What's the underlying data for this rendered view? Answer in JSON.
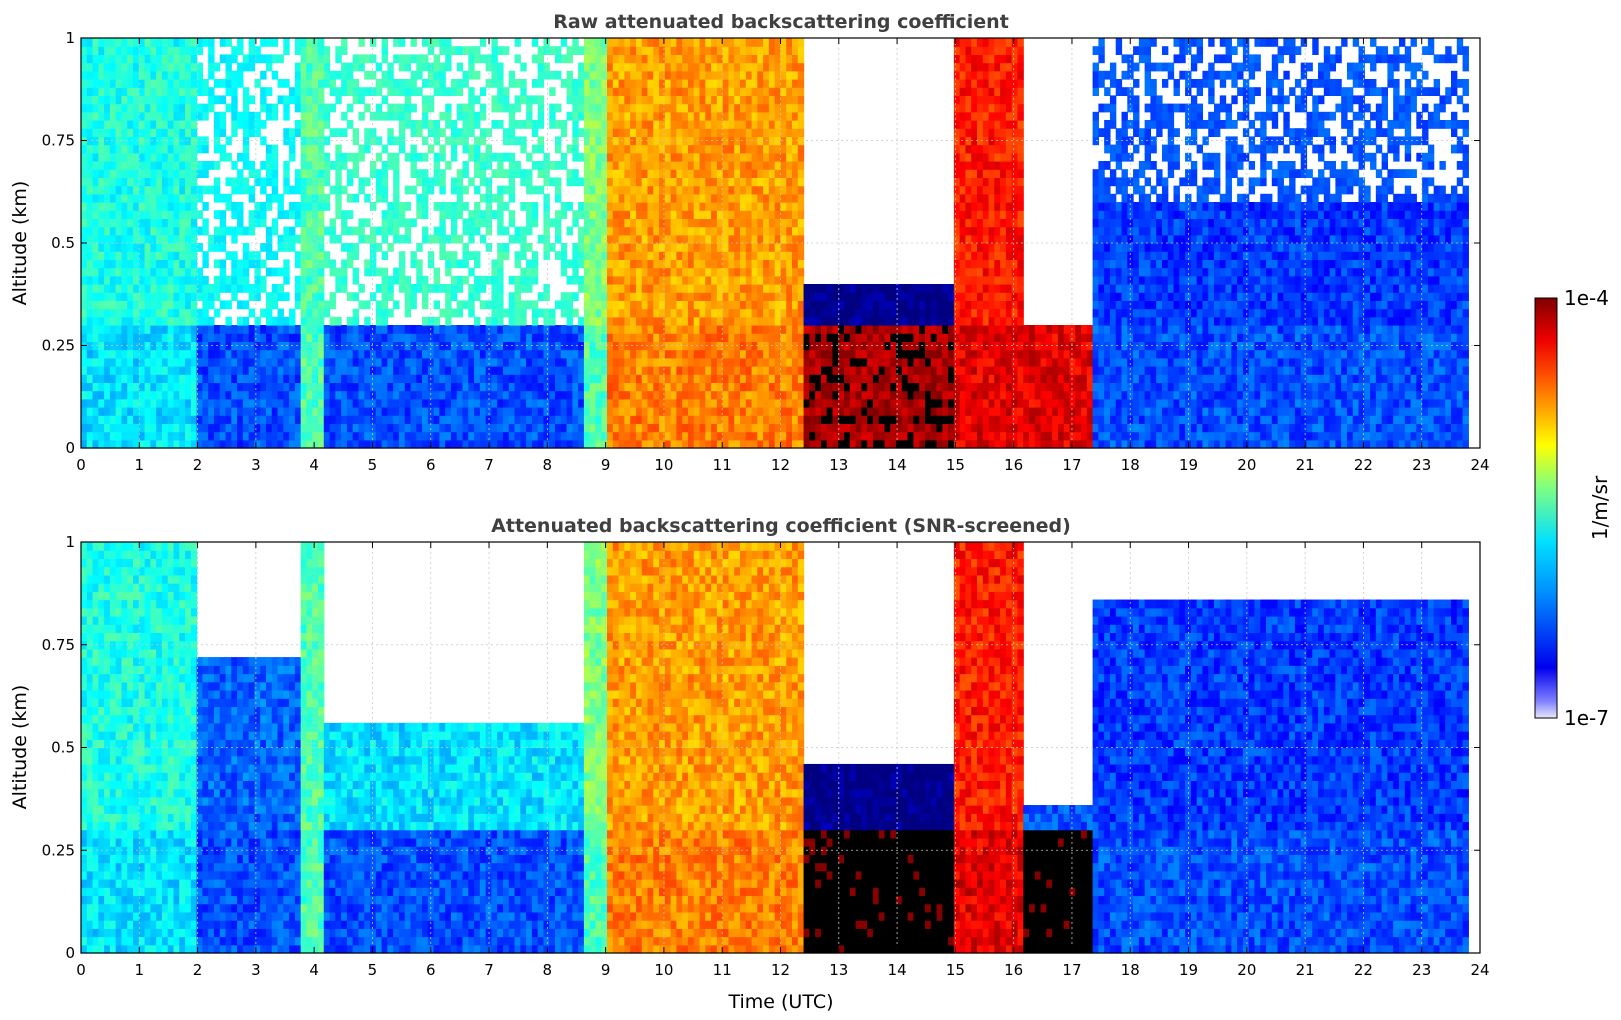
{
  "chart_data": [
    {
      "type": "heatmap",
      "title": "Raw attenuated backscattering coefficient",
      "xlabel": "",
      "ylabel": "Altitude (km)",
      "xlim": [
        0,
        24
      ],
      "ylim": [
        0,
        1
      ],
      "xticks": [
        "0",
        "1",
        "2",
        "3",
        "4",
        "5",
        "6",
        "7",
        "8",
        "9",
        "10",
        "11",
        "12",
        "13",
        "14",
        "15",
        "16",
        "17",
        "18",
        "19",
        "20",
        "21",
        "22",
        "23",
        "24"
      ],
      "yticks": [
        "0",
        "0.25",
        "0.5",
        "0.75",
        "1"
      ],
      "grid": true,
      "data_extent_hours": [
        0,
        23.8
      ],
      "segments": [
        {
          "t": [
            0,
            2
          ],
          "low_level": 0.35,
          "aloft_level": 0.4,
          "top": 1.0,
          "noisy_above": null
        },
        {
          "t": [
            2,
            3.8
          ],
          "low_level": 0.2,
          "aloft_level": 0.35,
          "top": 1.0,
          "noisy_above": 0.3
        },
        {
          "t": [
            3.8,
            4.2
          ],
          "low_level": 0.45,
          "aloft_level": 0.45,
          "top": 1.0,
          "noisy_above": null
        },
        {
          "t": [
            4.2,
            8.6
          ],
          "low_level": 0.2,
          "aloft_level": 0.4,
          "top": 1.0,
          "noisy_above": 0.3
        },
        {
          "t": [
            8.6,
            9.0
          ],
          "low_level": 0.45,
          "aloft_level": 0.5,
          "top": 1.0,
          "noisy_above": null
        },
        {
          "t": [
            9.0,
            12.4
          ],
          "low_level": 0.75,
          "aloft_level": 0.72,
          "top": 1.0,
          "noisy_above": null
        },
        {
          "t": [
            12.4,
            16.2
          ],
          "low_level": 0.97,
          "aloft_level": 0.0,
          "top": 0.4,
          "noisy_above": 0.4
        },
        {
          "t": [
            15.0,
            16.2
          ],
          "low_level": 0.9,
          "aloft_level": 0.85,
          "top": 1.0,
          "noisy_above": null
        },
        {
          "t": [
            16.2,
            17.4
          ],
          "low_level": 0.9,
          "aloft_level": 0.2,
          "top": 0.3,
          "noisy_above": 0.3
        },
        {
          "t": [
            17.4,
            23.8
          ],
          "low_level": 0.2,
          "aloft_level": 0.18,
          "top": 1.0,
          "noisy_above": 0.6
        }
      ]
    },
    {
      "type": "heatmap",
      "title": "Attenuated backscattering coefficient (SNR-screened)",
      "xlabel": "Time (UTC)",
      "ylabel": "Altitude (km)",
      "xlim": [
        0,
        24
      ],
      "ylim": [
        0,
        1
      ],
      "xticks": [
        "0",
        "1",
        "2",
        "3",
        "4",
        "5",
        "6",
        "7",
        "8",
        "9",
        "10",
        "11",
        "12",
        "13",
        "14",
        "15",
        "16",
        "17",
        "18",
        "19",
        "20",
        "21",
        "22",
        "23",
        "24"
      ],
      "yticks": [
        "0",
        "0.25",
        "0.5",
        "0.75",
        "1"
      ],
      "grid": true,
      "data_extent_hours": [
        0,
        23.8
      ],
      "segments": [
        {
          "t": [
            0,
            2
          ],
          "low_level": 0.35,
          "aloft_level": 0.4,
          "top": 1.0,
          "noisy_above": null
        },
        {
          "t": [
            2,
            3.8
          ],
          "low_level": 0.2,
          "aloft_level": 0.22,
          "top": 0.72,
          "noisy_above": null
        },
        {
          "t": [
            3.8,
            4.2
          ],
          "low_level": 0.45,
          "aloft_level": 0.45,
          "top": 1.0,
          "noisy_above": null
        },
        {
          "t": [
            4.2,
            8.6
          ],
          "low_level": 0.2,
          "aloft_level": 0.35,
          "top": 0.55,
          "noisy_above": null
        },
        {
          "t": [
            8.6,
            9.0
          ],
          "low_level": 0.45,
          "aloft_level": 0.5,
          "top": 1.0,
          "noisy_above": null
        },
        {
          "t": [
            9.0,
            12.4
          ],
          "low_level": 0.75,
          "aloft_level": 0.72,
          "top": 1.0,
          "noisy_above": null
        },
        {
          "t": [
            12.4,
            16.2
          ],
          "low_level": 1.05,
          "aloft_level": 0.0,
          "top": 0.45,
          "noisy_above": null
        },
        {
          "t": [
            15.0,
            16.2
          ],
          "low_level": 0.9,
          "aloft_level": 0.85,
          "top": 1.0,
          "noisy_above": null
        },
        {
          "t": [
            16.2,
            17.4
          ],
          "low_level": 1.05,
          "aloft_level": 0.2,
          "top": 0.35,
          "noisy_above": null
        },
        {
          "t": [
            17.4,
            23.8
          ],
          "low_level": 0.2,
          "aloft_level": 0.18,
          "top": 0.85,
          "noisy_above": null
        }
      ]
    }
  ],
  "colorbar": {
    "label": "1/m/sr",
    "max_label": "1e-4",
    "min_label": "1e-7",
    "colormap": "jet",
    "range": [
      1e-07,
      0.0001
    ],
    "scale": "log"
  }
}
